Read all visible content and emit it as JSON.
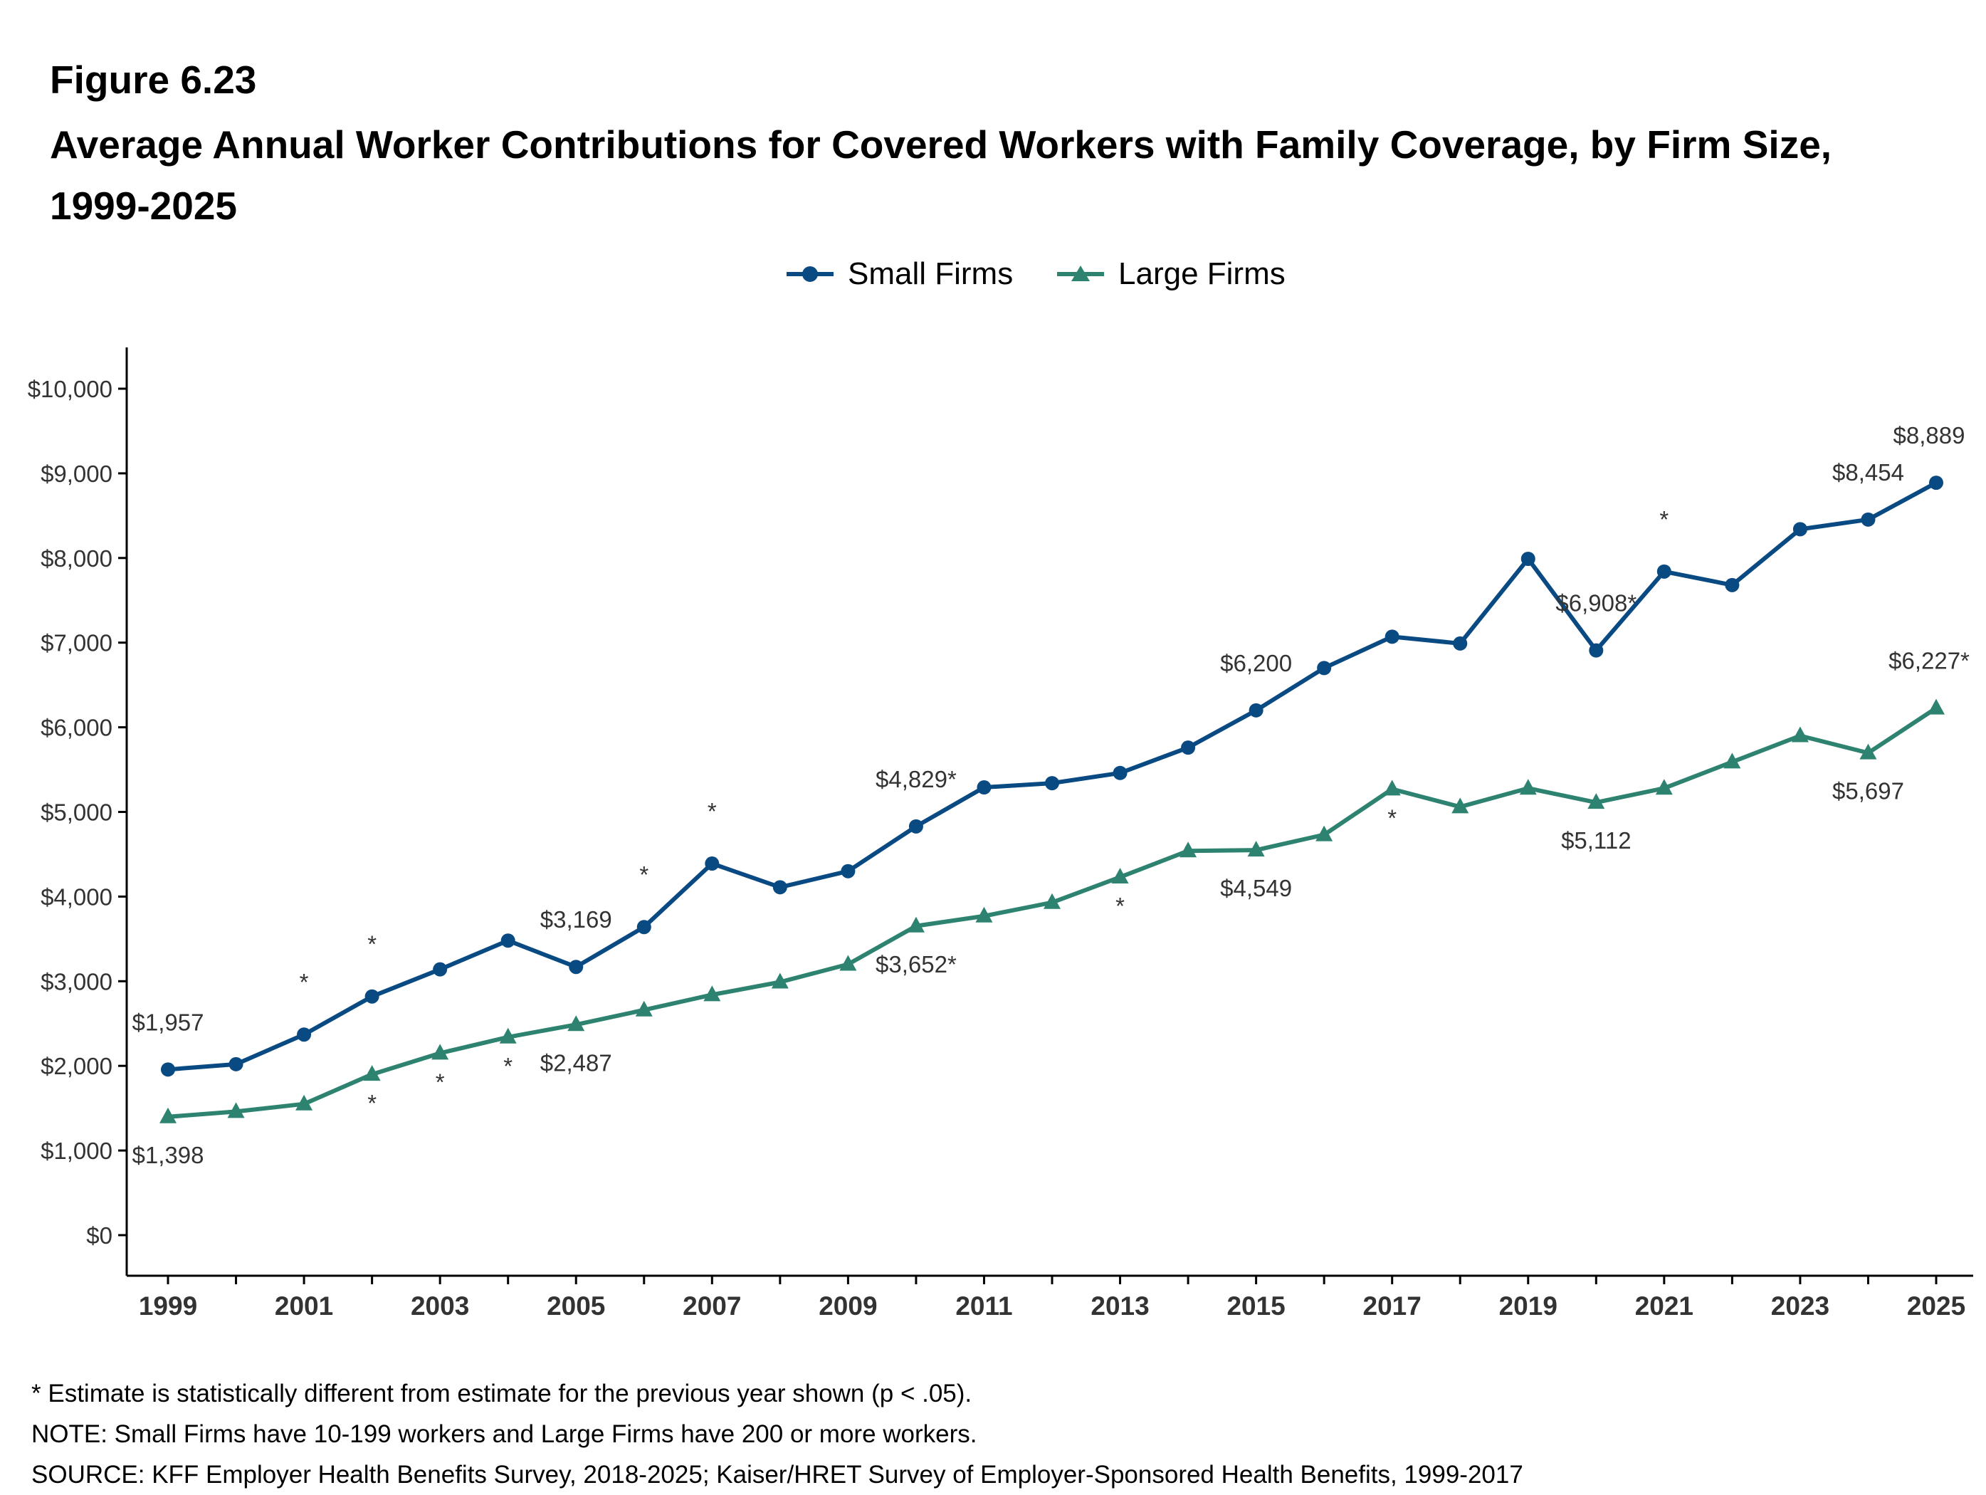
{
  "figure_label": "Figure 6.23",
  "title": "Average Annual Worker Contributions for Covered Workers with Family Coverage, by Firm Size, 1999-2025",
  "colors": {
    "small": "#0a4a82",
    "large": "#2e8370",
    "axis": "#000000",
    "label_text": "#333333"
  },
  "chart_data": {
    "type": "line",
    "title": "Average Annual Worker Contributions for Covered Workers with Family Coverage, by Firm Size, 1999-2025",
    "xlabel": "",
    "ylabel": "",
    "x": [
      1999,
      2000,
      2001,
      2002,
      2003,
      2004,
      2005,
      2006,
      2007,
      2008,
      2009,
      2010,
      2011,
      2012,
      2013,
      2014,
      2015,
      2016,
      2017,
      2018,
      2019,
      2020,
      2021,
      2022,
      2023,
      2024,
      2025
    ],
    "x_tick_labels": [
      "1999",
      "2001",
      "2003",
      "2005",
      "2007",
      "2009",
      "2011",
      "2013",
      "2015",
      "2017",
      "2019",
      "2021",
      "2023",
      "2025"
    ],
    "ylim": [
      0,
      10000
    ],
    "y_ticks": [
      0,
      1000,
      2000,
      3000,
      4000,
      5000,
      6000,
      7000,
      8000,
      9000,
      10000
    ],
    "y_tick_labels": [
      "$0",
      "$1,000",
      "$2,000",
      "$3,000",
      "$4,000",
      "$5,000",
      "$6,000",
      "$7,000",
      "$8,000",
      "$9,000",
      "$10,000"
    ],
    "grid": false,
    "legend_position": "top",
    "series": [
      {
        "name": "Small Firms",
        "marker": "circle",
        "color": "#0a4a82",
        "values": [
          1957,
          2020,
          2370,
          2820,
          3140,
          3480,
          3169,
          3640,
          4390,
          4110,
          4300,
          4829,
          5290,
          5340,
          5460,
          5760,
          6200,
          6700,
          7070,
          6990,
          7990,
          6908,
          7840,
          7680,
          8340,
          8454,
          8889
        ],
        "labels": [
          {
            "year": 1999,
            "text": "$1,957",
            "position": "above"
          },
          {
            "year": 2005,
            "text": "$3,169",
            "position": "above"
          },
          {
            "year": 2010,
            "text": "$4,829*",
            "position": "above"
          },
          {
            "year": 2015,
            "text": "$6,200",
            "position": "above"
          },
          {
            "year": 2020,
            "text": "$6,908*",
            "position": "above"
          },
          {
            "year": 2024,
            "text": "$8,454",
            "position": "above"
          },
          {
            "year": 2025,
            "text": "$8,889",
            "position": "above"
          }
        ],
        "significant_years": [
          2001,
          2002,
          2006,
          2007,
          2021
        ]
      },
      {
        "name": "Large Firms",
        "marker": "triangle",
        "color": "#2e8370",
        "values": [
          1398,
          1460,
          1550,
          1900,
          2150,
          2340,
          2487,
          2660,
          2840,
          2990,
          3200,
          3652,
          3770,
          3930,
          4230,
          4540,
          4549,
          4730,
          5270,
          5060,
          5280,
          5112,
          5280,
          5590,
          5900,
          5697,
          6227
        ],
        "labels": [
          {
            "year": 1999,
            "text": "$1,398",
            "position": "below"
          },
          {
            "year": 2005,
            "text": "$2,487",
            "position": "below"
          },
          {
            "year": 2010,
            "text": "$3,652*",
            "position": "below"
          },
          {
            "year": 2015,
            "text": "$4,549",
            "position": "below"
          },
          {
            "year": 2020,
            "text": "$5,112",
            "position": "below"
          },
          {
            "year": 2024,
            "text": "$5,697",
            "position": "below"
          },
          {
            "year": 2025,
            "text": "$6,227*",
            "position": "above"
          }
        ],
        "significant_years": [
          2002,
          2003,
          2004,
          2013,
          2017
        ]
      }
    ]
  },
  "notes": [
    "* Estimate is statistically different from estimate for the previous year shown (p < .05).",
    "NOTE: Small Firms have 10-199 workers and Large Firms have 200 or more workers.",
    "SOURCE: KFF Employer Health Benefits Survey, 2018-2025; Kaiser/HRET Survey of Employer-Sponsored Health Benefits, 1999-2017"
  ],
  "significance_marker": "*"
}
